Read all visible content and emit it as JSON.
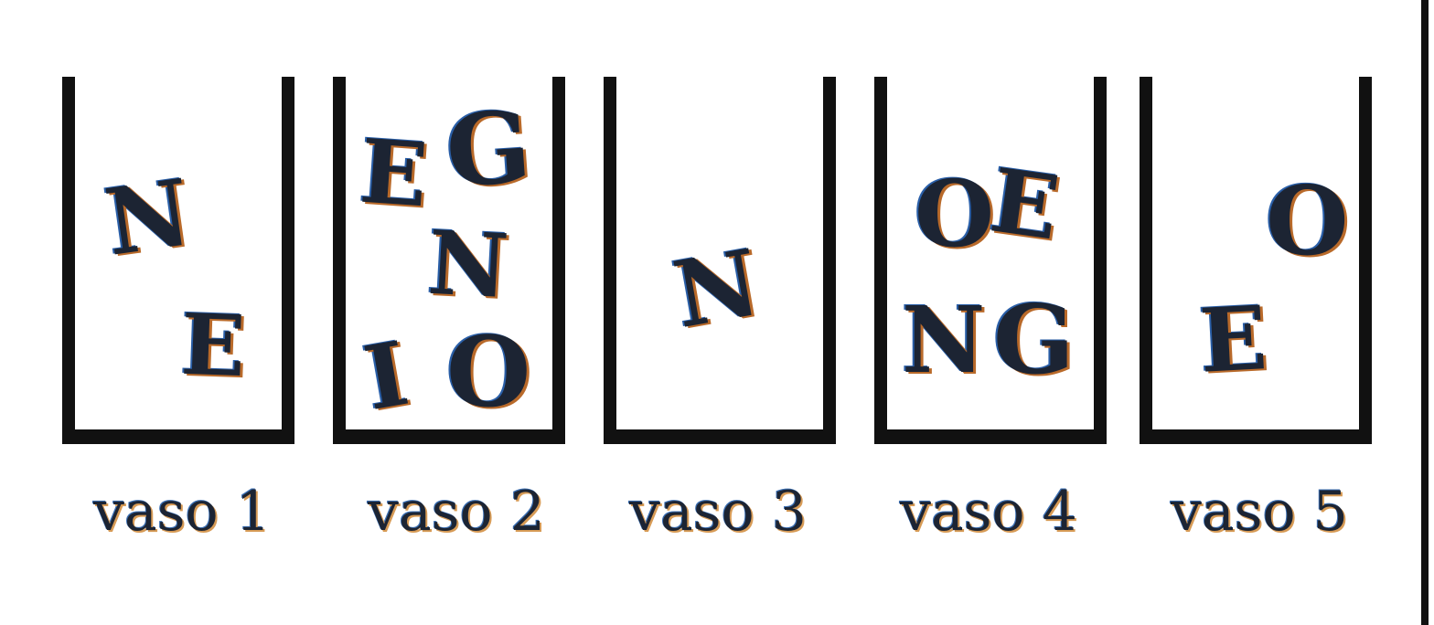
{
  "vases": [
    {
      "label": "vaso 1",
      "letters": [
        "N",
        "E"
      ]
    },
    {
      "label": "vaso 2",
      "letters": [
        "E",
        "G",
        "N",
        "I",
        "O"
      ]
    },
    {
      "label": "vaso 3",
      "letters": [
        "N"
      ]
    },
    {
      "label": "vaso 4",
      "letters": [
        "O",
        "E",
        "N",
        "G"
      ]
    },
    {
      "label": "vaso 5",
      "letters": [
        "O",
        "E"
      ]
    }
  ],
  "colors": {
    "outline": "#111111",
    "letter": "#1c2433",
    "shadow_warm": "#b96a2a",
    "shadow_cool": "#2a5fa8"
  }
}
